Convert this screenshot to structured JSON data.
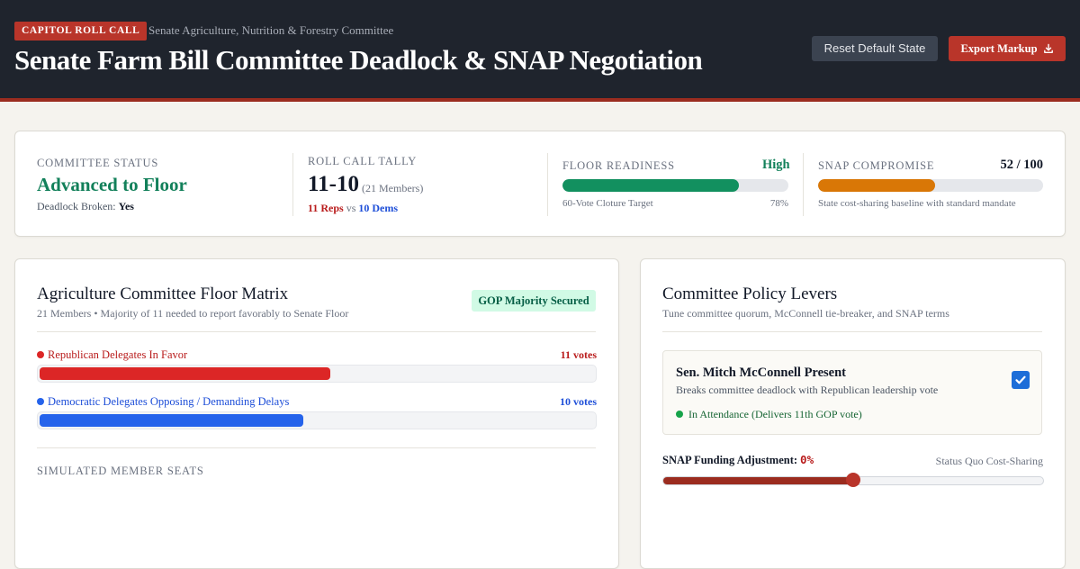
{
  "header": {
    "brand": "CAPITOL ROLL CALL",
    "committee": "Senate Agriculture, Nutrition & Forestry Committee",
    "title": "Senate Farm Bill Committee Deadlock & SNAP Negotiation",
    "reset_label": "Reset Default State",
    "export_label": "Export Markup"
  },
  "status": {
    "committee_status_label": "COMMITTEE STATUS",
    "committee_status_value": "Advanced to Floor",
    "deadlock_label": "Deadlock Broken:",
    "deadlock_value": "Yes",
    "tally_label": "ROLL CALL TALLY",
    "tally_value": "11-10",
    "tally_members": "(21 Members)",
    "reps_text": "11 Reps",
    "vs_text": "vs",
    "dems_text": "10 Dems",
    "readiness_label": "FLOOR READINESS",
    "readiness_value": "High",
    "readiness_percent": 78,
    "readiness_percent_text": "78%",
    "readiness_caption": "60-Vote Cloture Target",
    "snap_label": "SNAP COMPROMISE",
    "snap_score": "52 / 100",
    "snap_value": 52,
    "snap_caption": "State cost-sharing baseline with standard mandate"
  },
  "matrix": {
    "title": "Agriculture Committee Floor Matrix",
    "subtitle": "21 Members • Majority of 11 needed to report favorably to Senate Floor",
    "badge": "GOP Majority Secured",
    "rep_label": "Republican Delegates In Favor",
    "rep_votes": "11 votes",
    "rep_count": 11,
    "dem_label": "Democratic Delegates Opposing / Demanding Delays",
    "dem_votes": "10 votes",
    "dem_count": 10,
    "total_members": 21,
    "seats_heading": "SIMULATED MEMBER SEATS"
  },
  "levers": {
    "title": "Committee Policy Levers",
    "subtitle": "Tune committee quorum, McConnell tie-breaker, and SNAP terms",
    "senator_name": "Sen. Mitch McConnell Present",
    "senator_desc": "Breaks committee deadlock with Republican leadership vote",
    "attendance": "In Attendance (Delivers 11th GOP vote)",
    "present": true,
    "snap_adj_label": "SNAP Funding Adjustment:",
    "snap_adj_value": "0%",
    "snap_adj_status": "Status Quo Cost-Sharing",
    "slider_fraction": 0.5
  },
  "colors": {
    "republican": "#dc2626",
    "democrat": "#2563eb",
    "readiness": "#12905f",
    "snap": "#d97706",
    "accent": "#b9352a"
  }
}
